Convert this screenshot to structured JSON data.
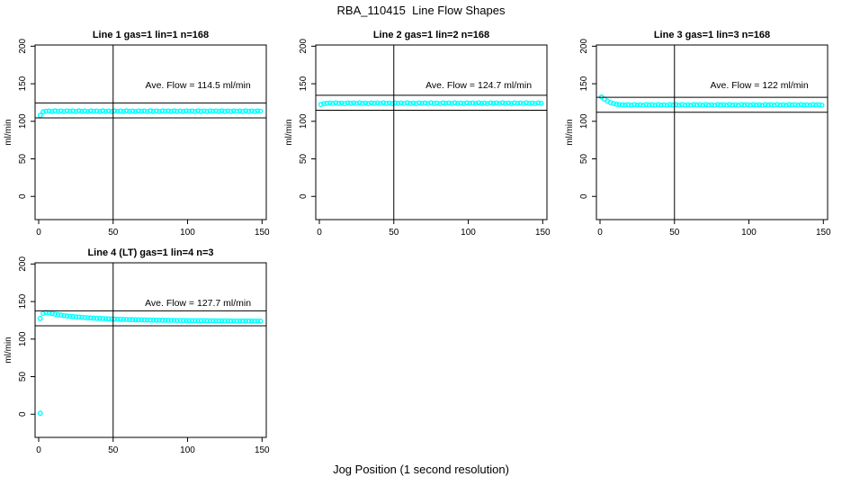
{
  "page": {
    "title": "RBA_110415  Line Flow Shapes",
    "xlabel": "Jog Position (1 second resolution)",
    "background": "#ffffff"
  },
  "colors": {
    "points": "#00ffff",
    "axis": "#000000",
    "text": "#000000"
  },
  "chart_data": [
    {
      "type": "scatter",
      "title": "Line 1 gas=1 lin=1 n=168",
      "annotation": "Ave. Flow =  114.5  ml/min",
      "ave_flow": 114.5,
      "n": 168,
      "ylabel": "ml/min",
      "yticks": [
        0,
        50,
        100,
        150,
        200
      ],
      "xticks": [
        0,
        50,
        100,
        150
      ],
      "xlim": [
        0,
        150
      ],
      "ylim": [
        0,
        200
      ],
      "vline_x": 50,
      "hlines": [
        124.5,
        104.5
      ],
      "annotation_xy": [
        107,
        144
      ],
      "points": [
        [
          1,
          107.9
        ],
        [
          3,
          112.7
        ],
        [
          5,
          113.4
        ],
        [
          7,
          113.7
        ],
        [
          9,
          113.1
        ],
        [
          11,
          113.9
        ],
        [
          13,
          113.2
        ],
        [
          15,
          113.6
        ],
        [
          17,
          113.0
        ],
        [
          19,
          113.8
        ],
        [
          21,
          113.4
        ],
        [
          23,
          113.7
        ],
        [
          25,
          113.1
        ],
        [
          27,
          113.9
        ],
        [
          29,
          113.2
        ],
        [
          31,
          113.6
        ],
        [
          33,
          113.0
        ],
        [
          35,
          113.8
        ],
        [
          37,
          113.4
        ],
        [
          39,
          113.7
        ],
        [
          41,
          113.1
        ],
        [
          43,
          113.9
        ],
        [
          45,
          113.2
        ],
        [
          47,
          113.6
        ],
        [
          49,
          113.0
        ],
        [
          51,
          113.8
        ],
        [
          53,
          113.4
        ],
        [
          55,
          113.7
        ],
        [
          57,
          113.1
        ],
        [
          59,
          113.9
        ],
        [
          61,
          113.2
        ],
        [
          63,
          113.6
        ],
        [
          65,
          113.0
        ],
        [
          67,
          113.8
        ],
        [
          69,
          113.4
        ],
        [
          71,
          113.7
        ],
        [
          73,
          113.1
        ],
        [
          75,
          113.9
        ],
        [
          77,
          113.2
        ],
        [
          79,
          113.6
        ],
        [
          81,
          113.0
        ],
        [
          83,
          113.8
        ],
        [
          85,
          113.4
        ],
        [
          87,
          113.7
        ],
        [
          89,
          113.1
        ],
        [
          91,
          113.9
        ],
        [
          93,
          113.2
        ],
        [
          95,
          113.6
        ],
        [
          97,
          113.0
        ],
        [
          99,
          113.8
        ],
        [
          101,
          113.4
        ],
        [
          103,
          113.7
        ],
        [
          105,
          113.1
        ],
        [
          107,
          113.9
        ],
        [
          109,
          113.2
        ],
        [
          111,
          113.6
        ],
        [
          113,
          113.0
        ],
        [
          115,
          113.8
        ],
        [
          117,
          113.4
        ],
        [
          119,
          113.7
        ],
        [
          121,
          113.1
        ],
        [
          123,
          113.9
        ],
        [
          125,
          113.2
        ],
        [
          127,
          113.6
        ],
        [
          129,
          113.0
        ],
        [
          131,
          113.8
        ],
        [
          133,
          113.4
        ],
        [
          135,
          113.7
        ],
        [
          137,
          113.1
        ],
        [
          139,
          113.9
        ],
        [
          141,
          113.2
        ],
        [
          143,
          113.6
        ],
        [
          145,
          113.0
        ],
        [
          147,
          113.8
        ],
        [
          149,
          113.4
        ]
      ]
    },
    {
      "type": "scatter",
      "title": "Line 2 gas=1 lin=2 n=168",
      "annotation": "Ave. Flow =  124.7  ml/min",
      "ave_flow": 124.7,
      "n": 168,
      "ylabel": "ml/min",
      "yticks": [
        0,
        50,
        100,
        150,
        200
      ],
      "xticks": [
        0,
        50,
        100,
        150
      ],
      "xlim": [
        0,
        150
      ],
      "ylim": [
        0,
        200
      ],
      "vline_x": 50,
      "hlines": [
        134.7,
        114.7
      ],
      "annotation_xy": [
        107,
        144
      ],
      "points": [
        [
          1,
          122.4
        ],
        [
          3,
          123.6
        ],
        [
          5,
          124.0
        ],
        [
          7,
          124.3
        ],
        [
          9,
          123.7
        ],
        [
          11,
          124.5
        ],
        [
          13,
          123.8
        ],
        [
          15,
          124.2
        ],
        [
          17,
          123.6
        ],
        [
          19,
          124.4
        ],
        [
          21,
          124.0
        ],
        [
          23,
          124.3
        ],
        [
          25,
          123.7
        ],
        [
          27,
          124.5
        ],
        [
          29,
          123.8
        ],
        [
          31,
          124.2
        ],
        [
          33,
          123.6
        ],
        [
          35,
          124.4
        ],
        [
          37,
          124.0
        ],
        [
          39,
          124.3
        ],
        [
          41,
          123.7
        ],
        [
          43,
          124.5
        ],
        [
          45,
          123.8
        ],
        [
          47,
          124.2
        ],
        [
          49,
          123.6
        ],
        [
          51,
          124.4
        ],
        [
          53,
          124.0
        ],
        [
          55,
          124.3
        ],
        [
          57,
          123.7
        ],
        [
          59,
          124.5
        ],
        [
          61,
          123.8
        ],
        [
          63,
          124.2
        ],
        [
          65,
          123.6
        ],
        [
          67,
          124.4
        ],
        [
          69,
          124.0
        ],
        [
          71,
          124.3
        ],
        [
          73,
          123.7
        ],
        [
          75,
          124.5
        ],
        [
          77,
          123.8
        ],
        [
          79,
          124.2
        ],
        [
          81,
          123.6
        ],
        [
          83,
          124.4
        ],
        [
          85,
          124.0
        ],
        [
          87,
          124.3
        ],
        [
          89,
          123.7
        ],
        [
          91,
          124.5
        ],
        [
          93,
          123.8
        ],
        [
          95,
          124.2
        ],
        [
          97,
          123.6
        ],
        [
          99,
          124.4
        ],
        [
          101,
          124.0
        ],
        [
          103,
          124.3
        ],
        [
          105,
          123.7
        ],
        [
          107,
          124.5
        ],
        [
          109,
          123.8
        ],
        [
          111,
          124.2
        ],
        [
          113,
          123.6
        ],
        [
          115,
          124.4
        ],
        [
          117,
          124.0
        ],
        [
          119,
          124.3
        ],
        [
          121,
          123.7
        ],
        [
          123,
          124.5
        ],
        [
          125,
          123.8
        ],
        [
          127,
          124.2
        ],
        [
          129,
          123.6
        ],
        [
          131,
          124.4
        ],
        [
          133,
          124.0
        ],
        [
          135,
          124.3
        ],
        [
          137,
          123.7
        ],
        [
          139,
          124.5
        ],
        [
          141,
          123.8
        ],
        [
          143,
          124.2
        ],
        [
          145,
          123.6
        ],
        [
          147,
          124.4
        ],
        [
          149,
          124.0
        ]
      ]
    },
    {
      "type": "scatter",
      "title": "Line 3 gas=1 lin=3 n=168",
      "annotation": "Ave. Flow =  122  ml/min",
      "ave_flow": 122,
      "n": 168,
      "ylabel": "ml/min",
      "yticks": [
        0,
        50,
        100,
        150,
        200
      ],
      "xticks": [
        0,
        50,
        100,
        150
      ],
      "xlim": [
        0,
        150
      ],
      "ylim": [
        0,
        200
      ],
      "vline_x": 50,
      "hlines": [
        132,
        112
      ],
      "annotation_xy": [
        107,
        144
      ],
      "points": [
        [
          1,
          132.4
        ],
        [
          3,
          129.3
        ],
        [
          5,
          126.8
        ],
        [
          7,
          125.0
        ],
        [
          9,
          123.7
        ],
        [
          11,
          122.8
        ],
        [
          13,
          122.2
        ],
        [
          15,
          121.9
        ],
        [
          17,
          121.7
        ],
        [
          19,
          122.0
        ],
        [
          21,
          121.4
        ],
        [
          23,
          122.2
        ],
        [
          25,
          121.5
        ],
        [
          27,
          121.9
        ],
        [
          29,
          121.3
        ],
        [
          31,
          122.1
        ],
        [
          33,
          121.7
        ],
        [
          35,
          122.0
        ],
        [
          37,
          121.4
        ],
        [
          39,
          122.2
        ],
        [
          41,
          121.5
        ],
        [
          43,
          121.9
        ],
        [
          45,
          121.3
        ],
        [
          47,
          122.1
        ],
        [
          49,
          121.7
        ],
        [
          51,
          122.0
        ],
        [
          53,
          121.4
        ],
        [
          55,
          122.2
        ],
        [
          57,
          121.5
        ],
        [
          59,
          121.9
        ],
        [
          61,
          121.3
        ],
        [
          63,
          122.1
        ],
        [
          65,
          121.7
        ],
        [
          67,
          122.0
        ],
        [
          69,
          121.4
        ],
        [
          71,
          122.2
        ],
        [
          73,
          121.5
        ],
        [
          75,
          121.9
        ],
        [
          77,
          121.3
        ],
        [
          79,
          122.1
        ],
        [
          81,
          121.7
        ],
        [
          83,
          122.0
        ],
        [
          85,
          121.4
        ],
        [
          87,
          122.2
        ],
        [
          89,
          121.5
        ],
        [
          91,
          121.9
        ],
        [
          93,
          121.3
        ],
        [
          95,
          122.1
        ],
        [
          97,
          121.7
        ],
        [
          99,
          122.0
        ],
        [
          101,
          121.4
        ],
        [
          103,
          122.2
        ],
        [
          105,
          121.5
        ],
        [
          107,
          121.9
        ],
        [
          109,
          121.3
        ],
        [
          111,
          122.1
        ],
        [
          113,
          121.7
        ],
        [
          115,
          122.0
        ],
        [
          117,
          121.4
        ],
        [
          119,
          122.2
        ],
        [
          121,
          121.5
        ],
        [
          123,
          121.9
        ],
        [
          125,
          121.3
        ],
        [
          127,
          122.1
        ],
        [
          129,
          121.7
        ],
        [
          131,
          122.0
        ],
        [
          133,
          121.4
        ],
        [
          135,
          122.2
        ],
        [
          137,
          121.5
        ],
        [
          139,
          121.9
        ],
        [
          141,
          121.3
        ],
        [
          143,
          122.1
        ],
        [
          145,
          121.7
        ],
        [
          147,
          122.0
        ],
        [
          149,
          121.4
        ]
      ]
    },
    {
      "type": "scatter",
      "title": "Line 4 (LT) gas=1 lin=4 n=3",
      "annotation": "Ave. Flow =  127.7  ml/min",
      "ave_flow": 127.7,
      "n": 3,
      "ylabel": "ml/min",
      "yticks": [
        0,
        50,
        100,
        150,
        200
      ],
      "xticks": [
        0,
        50,
        100,
        150
      ],
      "xlim": [
        0,
        150
      ],
      "ylim": [
        0,
        200
      ],
      "vline_x": 50,
      "hlines": [
        137.7,
        117.7
      ],
      "annotation_xy": [
        107,
        144
      ],
      "points": [
        [
          1,
          1.2
        ],
        [
          1,
          127.5
        ],
        [
          3,
          134.2
        ],
        [
          5,
          135.3
        ],
        [
          7,
          134.8
        ],
        [
          9,
          134.0
        ],
        [
          11,
          133.2
        ],
        [
          13,
          132.5
        ],
        [
          15,
          131.9
        ],
        [
          17,
          131.3
        ],
        [
          19,
          130.8
        ],
        [
          21,
          130.4
        ],
        [
          23,
          130.0
        ],
        [
          25,
          129.6
        ],
        [
          27,
          129.3
        ],
        [
          29,
          129.0
        ],
        [
          31,
          128.7
        ],
        [
          33,
          128.4
        ],
        [
          35,
          128.2
        ],
        [
          37,
          127.9
        ],
        [
          39,
          127.7
        ],
        [
          41,
          127.5
        ],
        [
          43,
          127.3
        ],
        [
          45,
          127.1
        ],
        [
          47,
          126.9
        ],
        [
          49,
          126.8
        ],
        [
          51,
          126.6
        ],
        [
          53,
          126.5
        ],
        [
          55,
          126.3
        ],
        [
          57,
          126.2
        ],
        [
          59,
          126.1
        ],
        [
          61,
          126.0
        ],
        [
          63,
          125.9
        ],
        [
          65,
          125.8
        ],
        [
          67,
          125.7
        ],
        [
          69,
          125.6
        ],
        [
          71,
          125.5
        ],
        [
          73,
          125.4
        ],
        [
          75,
          125.4
        ],
        [
          77,
          125.3
        ],
        [
          79,
          125.2
        ],
        [
          81,
          125.2
        ],
        [
          83,
          125.1
        ],
        [
          85,
          125.0
        ],
        [
          87,
          125.0
        ],
        [
          89,
          124.9
        ],
        [
          91,
          124.9
        ],
        [
          93,
          124.8
        ],
        [
          95,
          124.8
        ],
        [
          97,
          124.7
        ],
        [
          99,
          124.7
        ],
        [
          101,
          124.6
        ],
        [
          103,
          124.6
        ],
        [
          105,
          124.6
        ],
        [
          107,
          124.5
        ],
        [
          109,
          124.5
        ],
        [
          111,
          124.5
        ],
        [
          113,
          124.4
        ],
        [
          115,
          124.4
        ],
        [
          117,
          124.4
        ],
        [
          119,
          124.3
        ],
        [
          121,
          124.3
        ],
        [
          123,
          124.3
        ],
        [
          125,
          124.3
        ],
        [
          127,
          124.2
        ],
        [
          129,
          124.2
        ],
        [
          131,
          124.2
        ],
        [
          133,
          124.2
        ],
        [
          135,
          124.1
        ],
        [
          137,
          124.1
        ],
        [
          139,
          124.1
        ],
        [
          141,
          124.1
        ],
        [
          143,
          124.1
        ],
        [
          145,
          124.0
        ],
        [
          147,
          124.0
        ],
        [
          149,
          124.0
        ]
      ]
    }
  ]
}
